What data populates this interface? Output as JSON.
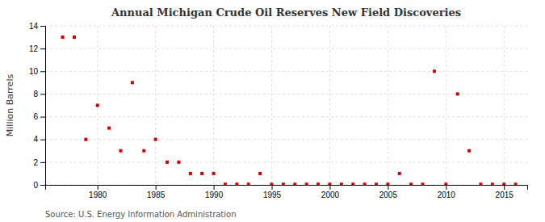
{
  "chart_data": {
    "type": "scatter",
    "title": "Annual Michigan Crude Oil Reserves New Field Discoveries",
    "ylabel": "Million Barrels",
    "source": "Source: U.S. Energy Information Administration",
    "color": "#cc0000",
    "marker": "square",
    "grid": true,
    "xlim": [
      1975.5,
      2017
    ],
    "ylim": [
      0,
      14
    ],
    "xticks": [
      1980,
      1985,
      1990,
      1995,
      2000,
      2005,
      2010,
      2015
    ],
    "yticks": [
      0,
      2,
      4,
      6,
      8,
      10,
      12,
      14
    ],
    "x": [
      1977,
      1978,
      1979,
      1980,
      1981,
      1982,
      1983,
      1984,
      1985,
      1986,
      1987,
      1988,
      1989,
      1990,
      1991,
      1992,
      1993,
      1994,
      1995,
      1996,
      1997,
      1998,
      1999,
      2000,
      2001,
      2002,
      2003,
      2004,
      2005,
      2006,
      2007,
      2008,
      2009,
      2010,
      2011,
      2012,
      2013,
      2014,
      2015,
      2016
    ],
    "values": [
      13.0,
      13.0,
      4.0,
      7.0,
      5.0,
      3.0,
      9.0,
      3.0,
      4.0,
      2.0,
      2.0,
      1.0,
      1.0,
      1.0,
      0.05,
      0.05,
      0.05,
      1.0,
      0.05,
      0.05,
      0.05,
      0.05,
      0.05,
      0.05,
      0.05,
      0.05,
      0.05,
      0.05,
      0.05,
      1.0,
      0.05,
      0.05,
      10.0,
      0.05,
      8.0,
      3.0,
      0.05,
      0.05,
      0.05,
      0.05
    ]
  }
}
